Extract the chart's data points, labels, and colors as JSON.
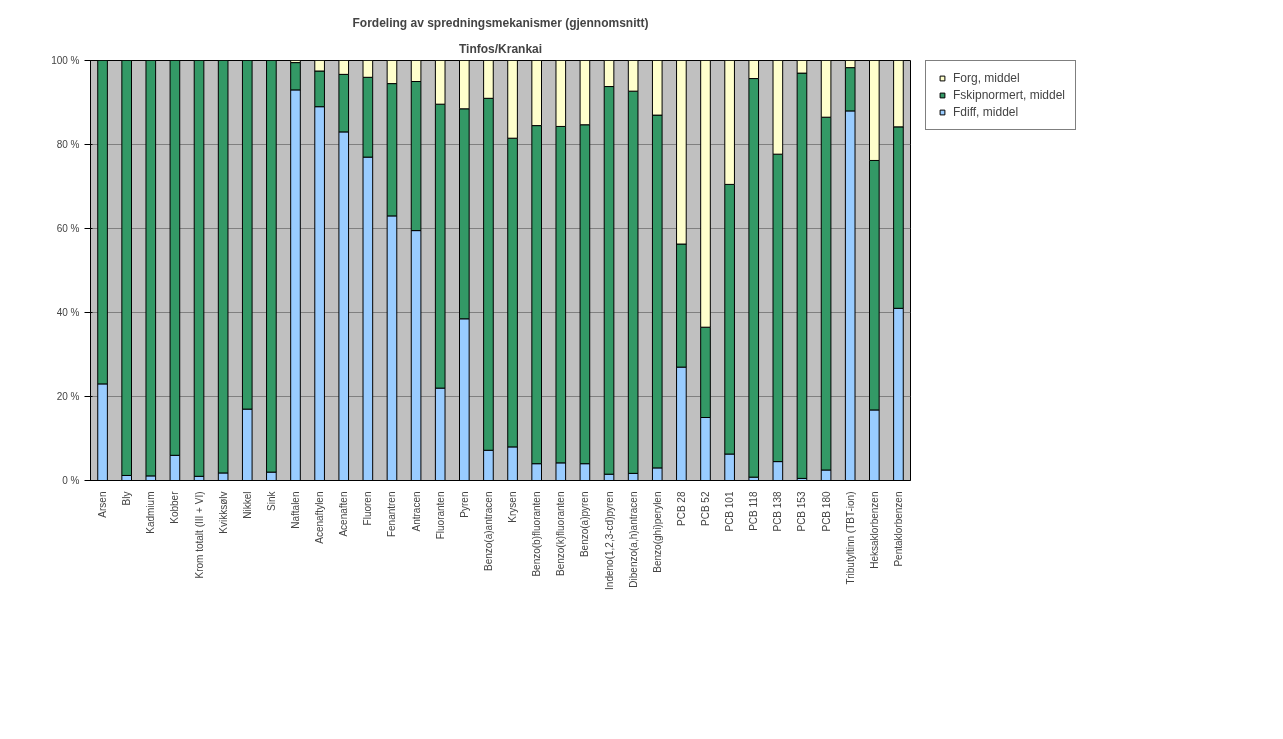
{
  "chart_data": {
    "type": "bar",
    "stacked": true,
    "title": "Fordeling av spredningsmekanismer (gjennomsnitt)",
    "subtitle": "Tinfos/Krankai",
    "categories": [
      "Arsen",
      "Bly",
      "Kadmium",
      "Kobber",
      "Krom totalt (III + VI)",
      "Kvikksølv",
      "Nikkel",
      "Sink",
      "Naftalen",
      "Acenaftylen",
      "Acenaften",
      "Fluoren",
      "Fenantren",
      "Antracen",
      "Fluoranten",
      "Pyren",
      "Benzo(a)antracen",
      "Krysen",
      "Benzo(b)fluoranten",
      "Benzo(k)fluoranten",
      "Benzo(a)pyren",
      "Indeno(1,2,3-cd)pyren",
      "Dibenzo(a,h)antracen",
      "Benzo(ghi)perylen",
      "PCB 28",
      "PCB 52",
      "PCB 101",
      "PCB 118",
      "PCB 138",
      "PCB 153",
      "PCB 180",
      "Tributyltinn (TBT-ion)",
      "Heksaklorbenzen",
      "Pentaklorbenzen"
    ],
    "series": [
      {
        "name": "Fdiff, middel",
        "color": "#99ccff",
        "values": [
          23,
          1.2,
          1.1,
          6,
          1,
          1.8,
          17,
          2,
          93,
          89,
          83,
          77,
          63,
          59.5,
          22,
          38.5,
          7.2,
          8,
          4,
          4.2,
          4,
          1.5,
          1.7,
          3,
          27,
          15,
          6.3,
          0.8,
          4.5,
          0.5,
          2.5,
          88,
          16.8,
          41
        ]
      },
      {
        "name": "Fskipnormert, middel",
        "color": "#339966",
        "values": [
          77,
          98.8,
          98.9,
          94,
          99,
          98.2,
          83,
          98,
          6.5,
          8.5,
          13.7,
          19,
          31.5,
          35.5,
          67.6,
          50,
          83.8,
          73.5,
          80.5,
          80.1,
          80.7,
          92.3,
          91,
          84,
          29.3,
          21.5,
          64.2,
          94.9,
          73.2,
          96.5,
          84,
          10.3,
          59.4,
          43.2
        ]
      },
      {
        "name": "Forg, middel",
        "color": "#ffffcc",
        "values": [
          0,
          0,
          0,
          0,
          0,
          0,
          0,
          0,
          0.5,
          2.5,
          3.3,
          4,
          5.5,
          5,
          10.4,
          11.5,
          9,
          18.5,
          15.5,
          15.7,
          15.3,
          6.2,
          7.3,
          13,
          43.7,
          63.5,
          29.5,
          4.3,
          22.3,
          3,
          13.5,
          1.7,
          23.8,
          15.8
        ]
      }
    ],
    "ylim": [
      0,
      100
    ],
    "yticks": [
      {
        "value": 0,
        "label": "0 %"
      },
      {
        "value": 20,
        "label": "20 %"
      },
      {
        "value": 40,
        "label": "40 %"
      },
      {
        "value": 60,
        "label": "60 %"
      },
      {
        "value": 80,
        "label": "80 %"
      },
      {
        "value": 100,
        "label": "100 %"
      }
    ],
    "grid": "y",
    "legend": "right"
  }
}
